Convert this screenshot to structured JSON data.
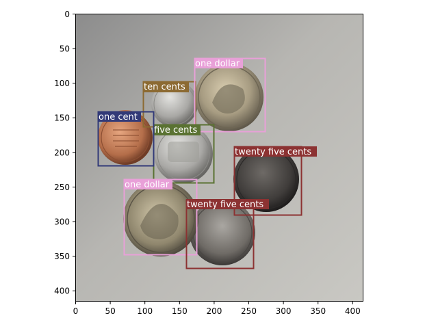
{
  "figure": {
    "x_ticks": [
      "0",
      "50",
      "100",
      "150",
      "200",
      "250",
      "300",
      "350",
      "400"
    ],
    "y_ticks": [
      "0",
      "50",
      "100",
      "150",
      "200",
      "250",
      "300",
      "350",
      "400"
    ]
  },
  "detections": [
    {
      "label": "one dollar",
      "color": "#e8a0d8"
    },
    {
      "label": "ten cents",
      "color": "#8c6a32"
    },
    {
      "label": "one cent",
      "color": "#323a78"
    },
    {
      "label": "five cents",
      "color": "#5a7232"
    },
    {
      "label": "twenty five cents",
      "color": "#8c3232"
    },
    {
      "label": "one dollar",
      "color": "#e8a0d8"
    },
    {
      "label": "twenty five cents",
      "color": "#8c3232"
    }
  ]
}
